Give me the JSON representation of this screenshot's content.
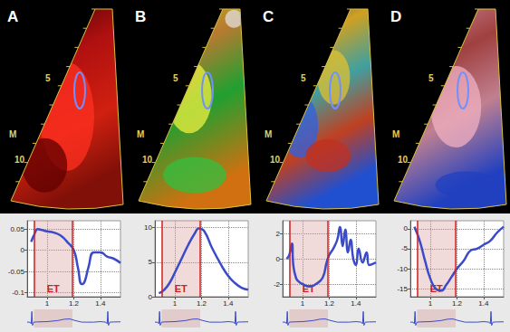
{
  "panel_labels": [
    "A",
    "B",
    "C",
    "D"
  ],
  "image_scale_labels": [
    "5",
    "M",
    "10"
  ],
  "ecg": {
    "x": [
      0.85,
      0.87,
      0.88,
      0.885,
      0.89,
      0.9,
      0.92,
      1.0,
      1.08,
      1.13,
      1.17,
      1.21,
      1.26,
      1.35,
      1.4,
      1.44,
      1.45,
      1.455,
      1.46,
      1.47,
      1.5,
      1.55
    ],
    "values": [
      0,
      0,
      -0.15,
      1,
      -0.3,
      0,
      0.02,
      0.05,
      0.15,
      0.28,
      0.3,
      0.15,
      0,
      0,
      0.05,
      0,
      -0.15,
      1,
      -0.3,
      0,
      0.02,
      0.03
    ],
    "ylim": [
      -0.5,
      1.2
    ],
    "color": "#3b4bc8"
  },
  "chart_data": [
    {
      "type": "line",
      "color": "#3b4bc8",
      "grid": true,
      "xlim": [
        0.85,
        1.55
      ],
      "xticks": [
        1,
        1.2,
        1.4
      ],
      "ylim": [
        -0.11,
        0.07
      ],
      "yticks": [
        -0.1,
        -0.05,
        0,
        0.05
      ],
      "annotation": {
        "text": "ET",
        "x_range": [
          0.9,
          1.19
        ]
      },
      "x": [
        0.88,
        0.9,
        0.93,
        0.96,
        1.0,
        1.05,
        1.1,
        1.15,
        1.2,
        1.23,
        1.26,
        1.28,
        1.31,
        1.35,
        1.4,
        1.45,
        1.5,
        1.55
      ],
      "values": [
        0.02,
        0.035,
        0.05,
        0.048,
        0.045,
        0.042,
        0.035,
        0.02,
        0.0,
        -0.04,
        -0.08,
        -0.075,
        -0.04,
        -0.005,
        -0.005,
        -0.015,
        -0.02,
        -0.03
      ]
    },
    {
      "type": "line",
      "color": "#3b4bc8",
      "grid": true,
      "xlim": [
        0.85,
        1.55
      ],
      "xticks": [
        1,
        1.2,
        1.4
      ],
      "ylim": [
        0,
        11
      ],
      "yticks": [
        0,
        5,
        10
      ],
      "annotation": {
        "text": "ET",
        "x_range": [
          0.9,
          1.19
        ]
      },
      "x": [
        0.88,
        0.92,
        0.96,
        1.0,
        1.05,
        1.1,
        1.15,
        1.18,
        1.22,
        1.28,
        1.35,
        1.4,
        1.45,
        1.5,
        1.55
      ],
      "values": [
        0.5,
        1.0,
        2.0,
        3.5,
        5.5,
        7.5,
        9.2,
        9.9,
        9.5,
        7.0,
        4.5,
        3.0,
        2.0,
        1.3,
        1.0
      ]
    },
    {
      "type": "line",
      "color": "#3b4bc8",
      "grid": true,
      "xlim": [
        0.85,
        1.55
      ],
      "xticks": [
        1,
        1.2,
        1.4
      ],
      "ylim": [
        -3,
        3
      ],
      "yticks": [
        -2,
        0,
        2
      ],
      "annotation": {
        "text": "ET",
        "x_range": [
          0.9,
          1.19
        ]
      },
      "x": [
        0.88,
        0.9,
        0.92,
        0.93,
        0.95,
        0.97,
        1.0,
        1.05,
        1.1,
        1.15,
        1.18,
        1.2,
        1.23,
        1.26,
        1.28,
        1.3,
        1.32,
        1.34,
        1.36,
        1.38,
        1.4,
        1.42,
        1.45,
        1.48,
        1.5,
        1.55
      ],
      "values": [
        0,
        0.3,
        1.2,
        -0.5,
        -1.5,
        -1.8,
        -2.0,
        -2.2,
        -2.0,
        -1.5,
        -0.3,
        0.3,
        0.8,
        1.5,
        2.5,
        1.0,
        2.3,
        0.5,
        1.5,
        0,
        -0.5,
        0.8,
        -0.3,
        0.5,
        -0.5,
        -0.3
      ]
    },
    {
      "type": "line",
      "color": "#3b4bc8",
      "grid": true,
      "xlim": [
        0.85,
        1.55
      ],
      "xticks": [
        1,
        1.2,
        1.4
      ],
      "ylim": [
        -17,
        2
      ],
      "yticks": [
        -15,
        -10,
        -5,
        0
      ],
      "annotation": {
        "text": "ET",
        "x_range": [
          0.9,
          1.19
        ]
      },
      "x": [
        0.88,
        0.92,
        0.96,
        1.0,
        1.04,
        1.08,
        1.12,
        1.16,
        1.2,
        1.25,
        1.3,
        1.35,
        1.4,
        1.45,
        1.5,
        1.55
      ],
      "values": [
        0.5,
        -3,
        -8,
        -12.5,
        -15,
        -15.5,
        -14,
        -12,
        -10,
        -8,
        -5.5,
        -5,
        -4,
        -3,
        -1,
        0.5
      ]
    }
  ]
}
